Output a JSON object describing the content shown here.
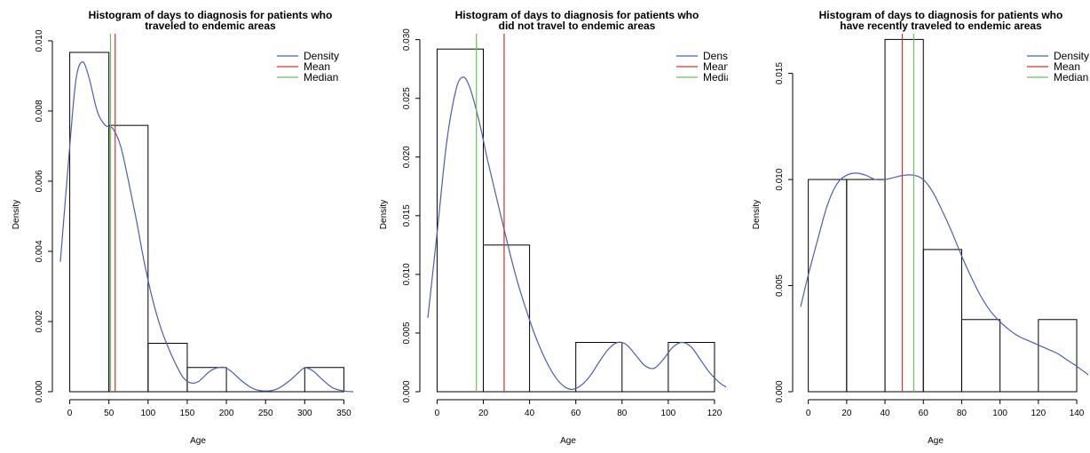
{
  "chart_data": [
    {
      "type": "histogram",
      "title": [
        "Histogram of days to diagnosis for patients who",
        "traveled to endemic areas"
      ],
      "xlabel": "Age",
      "ylabel": "Density",
      "xlim": [
        -12,
        362
      ],
      "ylim": [
        0,
        0.0101
      ],
      "xticks": [
        0,
        50,
        100,
        150,
        200,
        250,
        300,
        350
      ],
      "yticks": [
        0.0,
        0.002,
        0.004,
        0.006,
        0.008,
        0.01
      ],
      "ytick_labels": [
        "0.000",
        "0.002",
        "0.004",
        "0.006",
        "0.008",
        "0.010"
      ],
      "bins": [
        [
          0,
          50
        ],
        [
          50,
          100
        ],
        [
          100,
          150
        ],
        [
          150,
          200
        ],
        [
          200,
          250
        ],
        [
          250,
          300
        ],
        [
          300,
          350
        ]
      ],
      "values": [
        0.00967,
        0.00759,
        0.00138,
        0.00069,
        0,
        0,
        0.00069
      ],
      "density_curve": {
        "x": [
          -12,
          0,
          8,
          16,
          24,
          35,
          45,
          55,
          65,
          75,
          85,
          95,
          105,
          115,
          125,
          135,
          145,
          155,
          165,
          180,
          195,
          205,
          220,
          235,
          250,
          265,
          280,
          290,
          300,
          310,
          320,
          335,
          350,
          362
        ],
        "y": [
          0.0037,
          0.007,
          0.0089,
          0.0094,
          0.009,
          0.008,
          0.0076,
          0.0075,
          0.007,
          0.006,
          0.0049,
          0.0037,
          0.0027,
          0.0019,
          0.0013,
          0.0008,
          0.0004,
          0.00025,
          0.0003,
          0.0006,
          0.0007,
          0.0006,
          0.0003,
          8e-05,
          2e-05,
          8e-05,
          0.0003,
          0.0005,
          0.00068,
          0.0006,
          0.0004,
          0.00012,
          2e-05,
          0.0
        ]
      },
      "mean": 58,
      "median": 52,
      "legend": [
        "Density",
        "Mean",
        "Median"
      ]
    },
    {
      "type": "histogram",
      "title": [
        "Histogram of days to diagnosis for patients who",
        "did not travel to endemic areas"
      ],
      "xlabel": "Age",
      "ylabel": "Density",
      "xlim": [
        -4,
        125
      ],
      "ylim": [
        0,
        0.0302
      ],
      "xticks": [
        0,
        20,
        40,
        60,
        80,
        100,
        120
      ],
      "yticks": [
        0.0,
        0.005,
        0.01,
        0.015,
        0.02,
        0.025,
        0.03
      ],
      "ytick_labels": [
        "0.000",
        "0.005",
        "0.010",
        "0.015",
        "0.020",
        "0.025",
        "0.030"
      ],
      "bins": [
        [
          0,
          20
        ],
        [
          20,
          40
        ],
        [
          40,
          60
        ],
        [
          60,
          80
        ],
        [
          80,
          100
        ],
        [
          100,
          120
        ]
      ],
      "values": [
        0.0292,
        0.0125,
        0,
        0.0042,
        0,
        0.0042
      ],
      "density_curve": {
        "x": [
          -4,
          0,
          4,
          8,
          11,
          14,
          18,
          22,
          26,
          30,
          34,
          38,
          42,
          46,
          50,
          54,
          58,
          62,
          66,
          70,
          74,
          78,
          82,
          86,
          90,
          94,
          98,
          102,
          106,
          110,
          114,
          118,
          122,
          125
        ],
        "y": [
          0.0063,
          0.0135,
          0.021,
          0.0256,
          0.0268,
          0.026,
          0.0232,
          0.0196,
          0.0163,
          0.013,
          0.0099,
          0.0073,
          0.005,
          0.0031,
          0.0016,
          0.0006,
          0.0002,
          0.0005,
          0.0013,
          0.0025,
          0.0036,
          0.0042,
          0.004,
          0.0031,
          0.0022,
          0.002,
          0.0028,
          0.0038,
          0.0042,
          0.0038,
          0.0027,
          0.0016,
          0.0008,
          0.0004
        ]
      },
      "mean": 29,
      "median": 17,
      "legend": [
        "Density",
        "Mean",
        "Median"
      ]
    },
    {
      "type": "histogram",
      "title": [
        "Histogram of days to diagnosis for patients who",
        "have recently traveled to endemic areas"
      ],
      "xlabel": "Age",
      "ylabel": "Density",
      "xlim": [
        -4,
        146
      ],
      "ylim": [
        0,
        0.0167
      ],
      "xticks": [
        0,
        20,
        40,
        60,
        80,
        100,
        120,
        140
      ],
      "yticks": [
        0.0,
        0.005,
        0.01,
        0.015
      ],
      "ytick_labels": [
        "0.000",
        "0.005",
        "0.010",
        "0.015"
      ],
      "bins": [
        [
          0,
          20
        ],
        [
          20,
          40
        ],
        [
          40,
          60
        ],
        [
          60,
          80
        ],
        [
          80,
          100
        ],
        [
          100,
          120
        ],
        [
          120,
          140
        ]
      ],
      "values": [
        0.01,
        0.01,
        0.0166,
        0.0067,
        0.0034,
        0,
        0.0034
      ],
      "density_curve": {
        "x": [
          -4,
          0,
          5,
          10,
          15,
          20,
          25,
          30,
          35,
          40,
          45,
          50,
          55,
          60,
          65,
          70,
          75,
          80,
          85,
          90,
          95,
          100,
          105,
          110,
          115,
          120,
          125,
          130,
          135,
          140,
          146
        ],
        "y": [
          0.004,
          0.0055,
          0.0072,
          0.0088,
          0.0098,
          0.0102,
          0.0103,
          0.0102,
          0.01,
          0.01,
          0.0101,
          0.0102,
          0.0102,
          0.01,
          0.0094,
          0.0085,
          0.0075,
          0.0064,
          0.0054,
          0.0045,
          0.0038,
          0.0033,
          0.0029,
          0.0026,
          0.0024,
          0.0022,
          0.002,
          0.0018,
          0.0015,
          0.0012,
          0.0008
        ]
      },
      "mean": 49,
      "median": 55,
      "legend": [
        "Density",
        "Mean",
        "Median"
      ]
    }
  ],
  "colors": {
    "density": "#4a5fae",
    "mean": "#d9302c",
    "median": "#6abf5a",
    "bars": "#000000"
  }
}
